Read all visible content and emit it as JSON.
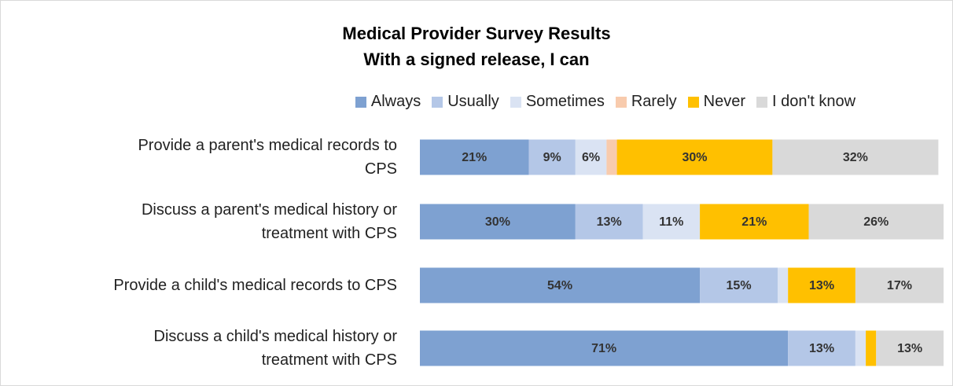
{
  "chart_data": {
    "type": "stacked-bar-horizontal",
    "title": "Medical Provider Survey Results",
    "subtitle": "With a signed release, I can",
    "categories": [
      "Provide a parent's medical records to\nCPS",
      "Discuss a parent's medical history or\ntreatment with CPS",
      "Provide a child's medical records to CPS",
      "Discuss a child's medical history or\ntreatment with CPS"
    ],
    "series": [
      {
        "name": "Always",
        "color": "#7ea1d1",
        "values": [
          21,
          30,
          54,
          71
        ],
        "value_labels": [
          "21%",
          "30%",
          "54%",
          "71%"
        ]
      },
      {
        "name": "Usually",
        "color": "#b4c7e7",
        "values": [
          9,
          13,
          15,
          13
        ],
        "value_labels": [
          "9%",
          "13%",
          "15%",
          "13%"
        ]
      },
      {
        "name": "Sometimes",
        "color": "#dae3f3",
        "values": [
          6,
          11,
          2,
          2
        ],
        "value_labels": [
          "6%",
          "11%",
          null,
          null
        ]
      },
      {
        "name": "Rarely",
        "color": "#f8cbad",
        "values": [
          2,
          0,
          0,
          0
        ],
        "value_labels": [
          null,
          null,
          null,
          null
        ]
      },
      {
        "name": "Never",
        "color": "#ffc000",
        "values": [
          30,
          21,
          13,
          2
        ],
        "value_labels": [
          "30%",
          "21%",
          "13%",
          null
        ]
      },
      {
        "name": "I don't know",
        "color": "#d9d9d9",
        "values": [
          32,
          26,
          17,
          13
        ],
        "value_labels": [
          "32%",
          "26%",
          "17%",
          "13%"
        ]
      }
    ],
    "legend": "top"
  }
}
